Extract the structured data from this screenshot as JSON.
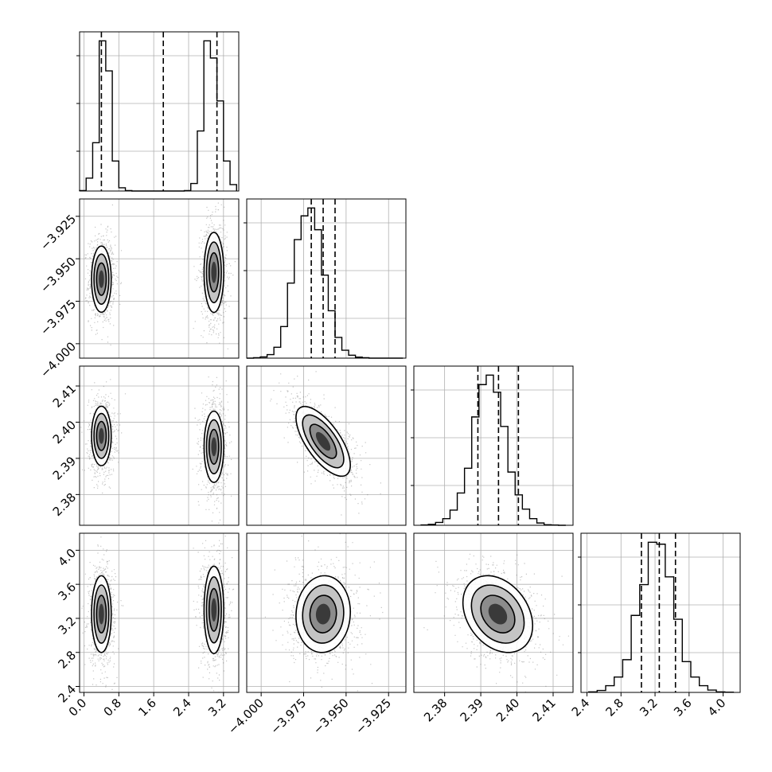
{
  "chart_data": {
    "type": "corner",
    "grid": true,
    "parameters": [
      {
        "range": [
          -0.1,
          3.55
        ],
        "ticks": [
          0.0,
          0.8,
          1.6,
          2.4,
          3.2
        ],
        "tick_labels": [
          "0.0",
          "0.8",
          "1.6",
          "2.4",
          "3.2"
        ]
      },
      {
        "range": [
          -4.0085,
          -3.9148
        ],
        "ticks": [
          -4.0,
          -3.975,
          -3.95,
          -3.925
        ],
        "tick_labels": [
          "−4.000",
          "−3.975",
          "−3.950",
          "−3.925"
        ]
      },
      {
        "range": [
          2.3715,
          2.4155
        ],
        "ticks": [
          2.38,
          2.39,
          2.4,
          2.41
        ],
        "tick_labels": [
          "2.38",
          "2.39",
          "2.40",
          "2.41"
        ]
      },
      {
        "range": [
          2.33,
          4.2
        ],
        "ticks": [
          2.4,
          2.8,
          3.2,
          3.6,
          4.0
        ],
        "tick_labels": [
          "2.4",
          "2.8",
          "3.2",
          "3.6",
          "4.0"
        ]
      }
    ],
    "histograms": [
      {
        "param": 0,
        "edges": [
          -0.1,
          0.05,
          0.2,
          0.35,
          0.5,
          0.65,
          0.8,
          0.95,
          1.1,
          1.25,
          1.4,
          1.55,
          1.7,
          1.85,
          2.0,
          2.15,
          2.3,
          2.45,
          2.6,
          2.75,
          2.9,
          3.05,
          3.2,
          3.35,
          3.5
        ],
        "counts": [
          2,
          60,
          225,
          700,
          560,
          140,
          15,
          2,
          0,
          0,
          0,
          0,
          0,
          0,
          0,
          0,
          2,
          35,
          280,
          700,
          620,
          420,
          140,
          30
        ],
        "quantiles": [
          0.4,
          1.82,
          3.05
        ]
      },
      {
        "param": 1,
        "edges": [
          -4.0085,
          -4.0045,
          -4.0005,
          -3.9965,
          -3.9925,
          -3.9885,
          -3.9845,
          -3.9805,
          -3.9765,
          -3.9725,
          -3.9685,
          -3.9645,
          -3.9605,
          -3.9565,
          -3.9525,
          -3.9485,
          -3.9445,
          -3.9405,
          -3.9365,
          -3.9325,
          -3.9285,
          -3.9245,
          -3.9205,
          -3.9165
        ],
        "counts": [
          0,
          2,
          6,
          18,
          55,
          160,
          380,
          600,
          720,
          760,
          650,
          420,
          240,
          105,
          40,
          15,
          5,
          2,
          0,
          0,
          0,
          0,
          0
        ],
        "quantiles": [
          -3.9705,
          -3.9635,
          -3.9565
        ]
      },
      {
        "param": 2,
        "edges": [
          2.3735,
          2.3755,
          2.3775,
          2.3795,
          2.3815,
          2.3835,
          2.3855,
          2.3875,
          2.3895,
          2.3915,
          2.3935,
          2.3955,
          2.3975,
          2.3995,
          2.4015,
          2.4035,
          2.4055,
          2.4075,
          2.4095,
          2.4115,
          2.4135
        ],
        "counts": [
          2,
          5,
          15,
          35,
          80,
          170,
          300,
          570,
          740,
          790,
          700,
          520,
          280,
          160,
          85,
          35,
          12,
          3,
          1,
          0
        ],
        "quantiles": [
          2.3892,
          2.3949,
          2.4004
        ]
      },
      {
        "param": 3,
        "edges": [
          2.42,
          2.52,
          2.62,
          2.72,
          2.82,
          2.92,
          3.02,
          3.12,
          3.22,
          3.32,
          3.42,
          3.52,
          3.62,
          3.72,
          3.82,
          3.92,
          4.02,
          4.12
        ],
        "counts": [
          3,
          10,
          35,
          80,
          170,
          400,
          560,
          780,
          770,
          600,
          380,
          160,
          80,
          35,
          12,
          3,
          1
        ],
        "quantiles": [
          3.04,
          3.25,
          3.44
        ]
      }
    ],
    "blobs": [
      {
        "px": 0,
        "py": 1,
        "clusters": [
          {
            "mx": 0.4,
            "my": -3.962,
            "sx": 0.11,
            "sy": 0.0095,
            "rho": 0
          },
          {
            "mx": 2.98,
            "my": -3.958,
            "sx": 0.11,
            "sy": 0.0115,
            "rho": 0
          }
        ]
      },
      {
        "px": 0,
        "py": 2,
        "clusters": [
          {
            "mx": 0.4,
            "my": 2.3962,
            "sx": 0.11,
            "sy": 0.004,
            "rho": 0
          },
          {
            "mx": 2.98,
            "my": 2.3932,
            "sx": 0.11,
            "sy": 0.0048,
            "rho": 0
          }
        ]
      },
      {
        "px": 0,
        "py": 3,
        "clusters": [
          {
            "mx": 0.4,
            "my": 3.25,
            "sx": 0.11,
            "sy": 0.22,
            "rho": 0
          },
          {
            "mx": 2.98,
            "my": 3.3,
            "sx": 0.11,
            "sy": 0.25,
            "rho": 0
          }
        ]
      },
      {
        "px": 1,
        "py": 2,
        "clusters": [
          {
            "mx": -3.9635,
            "my": 2.3947,
            "sx": 0.0078,
            "sy": 0.0047,
            "rho": -0.68
          }
        ]
      },
      {
        "px": 1,
        "py": 3,
        "clusters": [
          {
            "mx": -3.9635,
            "my": 3.25,
            "sx": 0.0078,
            "sy": 0.22,
            "rho": 0.05
          }
        ]
      },
      {
        "px": 2,
        "py": 3,
        "clusters": [
          {
            "mx": 2.3947,
            "my": 3.25,
            "sx": 0.0047,
            "sy": 0.22,
            "rho": -0.3
          }
        ]
      }
    ]
  }
}
